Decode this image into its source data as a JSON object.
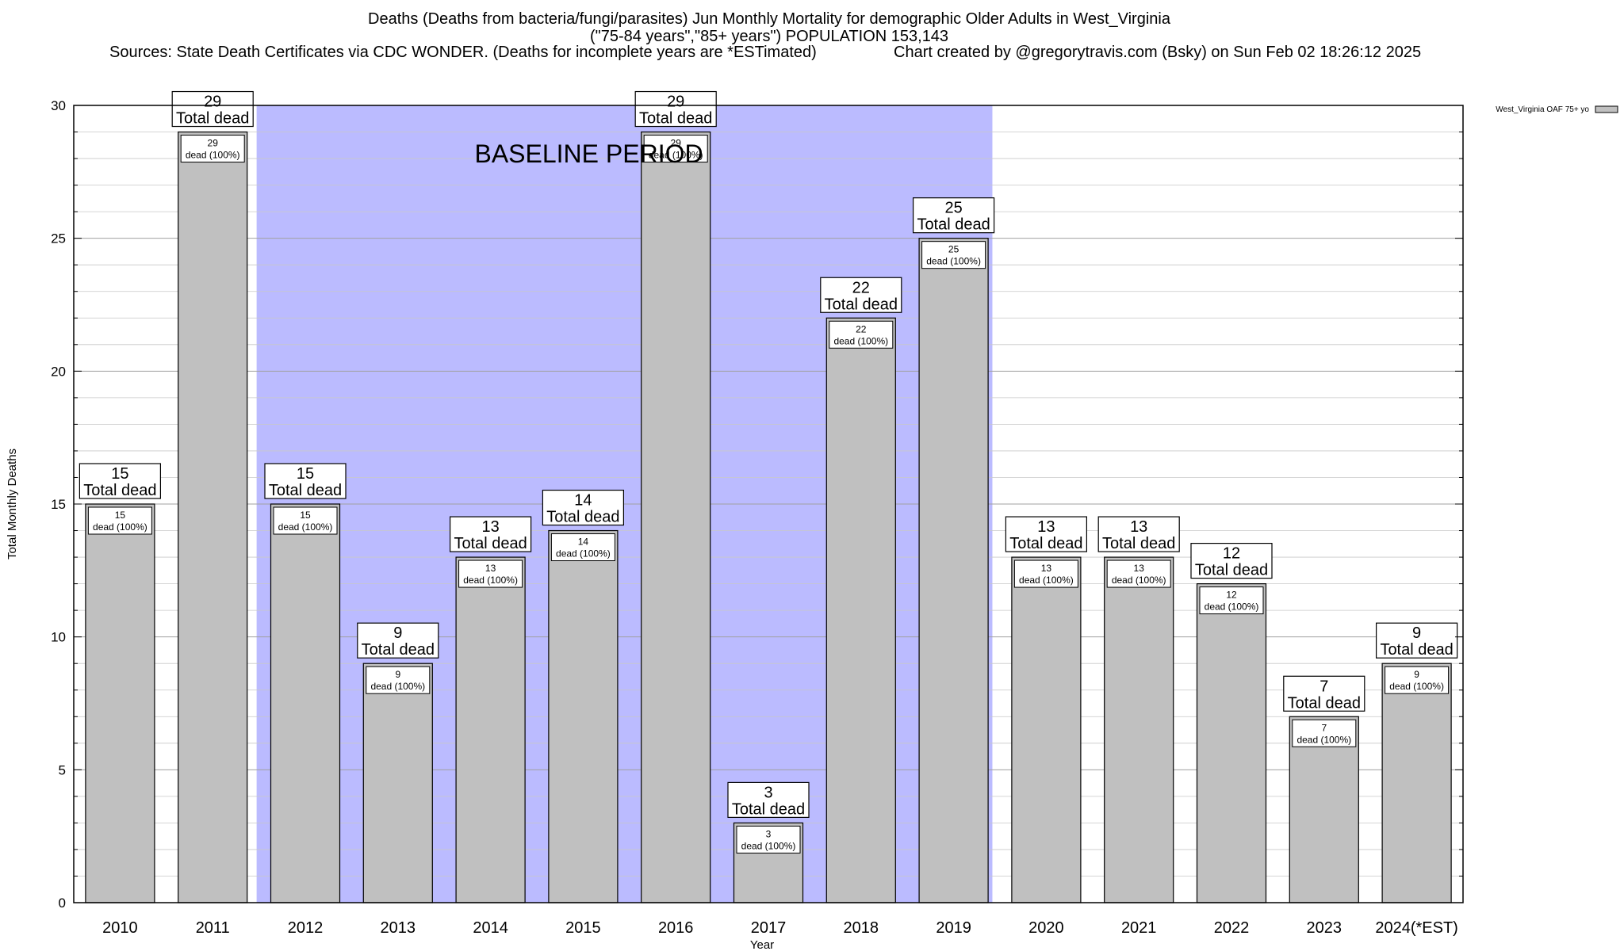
{
  "header": {
    "line1": "Deaths (Deaths from bacteria/fungi/parasites) Jun Monthly Mortality for demographic Older Adults in West_Virginia",
    "line2": "(\"75-84 years\",\"85+ years\") POPULATION 153,143",
    "line3": "Sources: State Death Certificates via CDC WONDER. (Deaths for incomplete years are *ESTimated)",
    "line4": "Chart created by @gregorytravis.com (Bsky) on Sun Feb 02 18:26:12 2025"
  },
  "chart_data": {
    "type": "bar",
    "title": "Deaths (Deaths from bacteria/fungi/parasites) Jun Monthly Mortality for demographic Older Adults in West_Virginia",
    "xlabel": "Year",
    "ylabel": "Total Monthly Deaths",
    "ylim": [
      0,
      30
    ],
    "y_ticks": [
      0,
      5,
      10,
      15,
      20,
      25,
      30
    ],
    "grid": true,
    "legend_position": "top-right",
    "categories": [
      "2010",
      "2011",
      "2012",
      "2013",
      "2014",
      "2015",
      "2016",
      "2017",
      "2018",
      "2019",
      "2020",
      "2021",
      "2022",
      "2023",
      "2024(*EST)"
    ],
    "series": [
      {
        "name": "West_Virginia OAF 75+ yo",
        "color": "#c0c0c0",
        "values": [
          15,
          29,
          15,
          9,
          13,
          14,
          29,
          3,
          22,
          25,
          13,
          13,
          12,
          7,
          9
        ]
      }
    ],
    "total_label": "Total dead",
    "inner_label_suffix": "dead (100%)",
    "baseline": {
      "label": "BASELINE PERIOD",
      "from": "2012",
      "to": "2019",
      "color": "#bbbbff"
    }
  }
}
